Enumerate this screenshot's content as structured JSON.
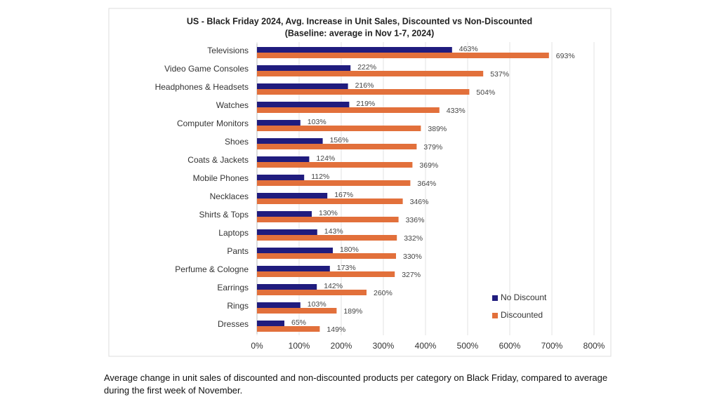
{
  "chart_data": {
    "type": "bar",
    "orientation": "horizontal",
    "title": "US - Black Friday 2024, Avg. Increase in Unit Sales, Discounted vs Non-Discounted",
    "subtitle": "(Baseline: average in Nov 1-7, 2024)",
    "categories": [
      "Televisions",
      "Video Game Consoles",
      "Headphones & Headsets",
      "Watches",
      "Computer Monitors",
      "Shoes",
      "Coats & Jackets",
      "Mobile Phones",
      "Necklaces",
      "Shirts & Tops",
      "Laptops",
      "Pants",
      "Perfume & Cologne",
      "Earrings",
      "Rings",
      "Dresses"
    ],
    "series": [
      {
        "name": "No Discount",
        "color": "#201c7e",
        "values": [
          463,
          222,
          216,
          219,
          103,
          156,
          124,
          112,
          167,
          130,
          143,
          180,
          173,
          142,
          103,
          65
        ],
        "value_labels": [
          "463%",
          "222%",
          "216%",
          "219%",
          "103%",
          "156%",
          "124%",
          "112%",
          "167%",
          "130%",
          "143%",
          "180%",
          "173%",
          "142%",
          "103%",
          "65%"
        ]
      },
      {
        "name": "Discounted",
        "color": "#e2703b",
        "values": [
          693,
          537,
          504,
          433,
          389,
          379,
          369,
          364,
          346,
          336,
          332,
          330,
          327,
          260,
          189,
          149
        ],
        "value_labels": [
          "693%",
          "537%",
          "504%",
          "433%",
          "389%",
          "379%",
          "369%",
          "364%",
          "346%",
          "336%",
          "332%",
          "330%",
          "327%",
          "260%",
          "189%",
          "149%"
        ]
      }
    ],
    "xlim": [
      0,
      800
    ],
    "xticks": [
      {
        "value": 0,
        "label": "0%"
      },
      {
        "value": 100,
        "label": "100%"
      },
      {
        "value": 200,
        "label": "200%"
      },
      {
        "value": 300,
        "label": "300%"
      },
      {
        "value": 400,
        "label": "400%"
      },
      {
        "value": 500,
        "label": "500%"
      },
      {
        "value": 600,
        "label": "600%"
      },
      {
        "value": 700,
        "label": "700%"
      },
      {
        "value": 800,
        "label": "800%"
      }
    ],
    "grid": true,
    "legend": "lower right"
  },
  "caption": "Average change in unit sales of discounted and non-discounted products per category on Black Friday, compared to average during the first week of November."
}
